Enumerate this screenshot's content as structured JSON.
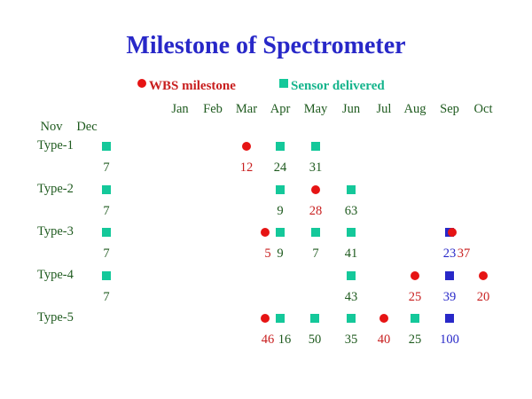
{
  "chart_data": {
    "type": "scatter",
    "title": "Milestone of Spectrometer",
    "legend": {
      "placement": "top-center",
      "entries": [
        {
          "name": "WBS milestone",
          "marker": "circle",
          "color": "#e61414",
          "text_color": "#c81e1e"
        },
        {
          "name": "Sensor delivered",
          "marker": "square",
          "color": "#14c89a",
          "text_color": "#14b48c"
        }
      ]
    },
    "months_top": [
      "Jan",
      "Feb",
      "Mar",
      "Apr",
      "May",
      "Jun",
      "Jul",
      "Aug",
      "Sep",
      "Oct"
    ],
    "months_left": [
      "Nov",
      "Dec"
    ],
    "colors": {
      "title": "#2828c8",
      "wbs": "#e61414",
      "sensor": "#14c89a",
      "blue": "#2828c8",
      "text": "#1e5a1e",
      "red_text": "#c81e1e",
      "blue_text": "#2828c8"
    },
    "rows": [
      {
        "name": "Type-1",
        "markers": [
          {
            "m": "Dec",
            "type": "sensor"
          },
          {
            "m": "Mar",
            "type": "wbs"
          },
          {
            "m": "Apr",
            "type": "sensor"
          },
          {
            "m": "May",
            "type": "sensor"
          }
        ],
        "labels": [
          {
            "m": "Dec",
            "text": "7",
            "color": "text"
          },
          {
            "m": "Mar",
            "text": "12",
            "color": "red_text"
          },
          {
            "m": "Apr",
            "text": "24",
            "color": "text"
          },
          {
            "m": "May",
            "text": "31",
            "color": "text"
          }
        ]
      },
      {
        "name": "Type-2",
        "markers": [
          {
            "m": "Dec",
            "type": "sensor"
          },
          {
            "m": "Apr",
            "type": "sensor"
          },
          {
            "m": "May",
            "type": "wbs"
          },
          {
            "m": "Jun",
            "type": "sensor"
          }
        ],
        "labels": [
          {
            "m": "Dec",
            "text": "7",
            "color": "text"
          },
          {
            "m": "Apr",
            "text": "9",
            "color": "text"
          },
          {
            "m": "May",
            "text": "28",
            "color": "red_text"
          },
          {
            "m": "Jun",
            "text": "63",
            "color": "text"
          }
        ]
      },
      {
        "name": "Type-3",
        "markers": [
          {
            "m": "Dec",
            "type": "sensor"
          },
          {
            "m": "Mar+",
            "type": "wbs"
          },
          {
            "m": "Apr",
            "type": "sensor"
          },
          {
            "m": "May",
            "type": "sensor"
          },
          {
            "m": "Jun",
            "type": "sensor"
          },
          {
            "m": "Sep",
            "type": "blue"
          },
          {
            "m": "Sep+",
            "type": "wbs"
          }
        ],
        "labels": [
          {
            "m": "Dec",
            "text": "7",
            "color": "text"
          },
          {
            "m": "Mar+",
            "text": "5",
            "color": "red_text"
          },
          {
            "m": "Apr",
            "text": "9",
            "color": "text"
          },
          {
            "m": "May",
            "text": "7",
            "color": "text"
          },
          {
            "m": "Jun",
            "text": "41",
            "color": "text"
          },
          {
            "m": "Sep",
            "text": "23",
            "color": "blue_text"
          },
          {
            "m": "Sep+",
            "text": "37",
            "color": "red_text"
          }
        ]
      },
      {
        "name": "Type-4",
        "markers": [
          {
            "m": "Dec",
            "type": "sensor"
          },
          {
            "m": "Jun",
            "type": "sensor"
          },
          {
            "m": "Aug",
            "type": "wbs"
          },
          {
            "m": "Sep",
            "type": "blue"
          },
          {
            "m": "Oct",
            "type": "wbs"
          }
        ],
        "labels": [
          {
            "m": "Dec",
            "text": "7",
            "color": "text"
          },
          {
            "m": "Jun",
            "text": "43",
            "color": "text"
          },
          {
            "m": "Aug",
            "text": "25",
            "color": "red_text"
          },
          {
            "m": "Sep",
            "text": "39",
            "color": "blue_text"
          },
          {
            "m": "Oct",
            "text": "20",
            "color": "red_text"
          }
        ]
      },
      {
        "name": "Type-5",
        "markers": [
          {
            "m": "Mar+",
            "type": "wbs"
          },
          {
            "m": "Apr",
            "type": "sensor"
          },
          {
            "m": "May+",
            "type": "sensor"
          },
          {
            "m": "Jun",
            "type": "sensor"
          },
          {
            "m": "Jul",
            "type": "wbs"
          },
          {
            "m": "Aug",
            "type": "sensor"
          },
          {
            "m": "Sep",
            "type": "blue"
          }
        ],
        "labels": [
          {
            "m": "Mar+",
            "text": "46",
            "color": "red_text"
          },
          {
            "m": "Apr+",
            "text": "16",
            "color": "text"
          },
          {
            "m": "May+",
            "text": "50",
            "color": "text"
          },
          {
            "m": "Jun",
            "text": "35",
            "color": "text"
          },
          {
            "m": "Jul",
            "text": "40",
            "color": "red_text"
          },
          {
            "m": "Aug",
            "text": "25",
            "color": "text"
          },
          {
            "m": "Sep",
            "text": "100",
            "color": "blue_text"
          }
        ]
      }
    ]
  }
}
